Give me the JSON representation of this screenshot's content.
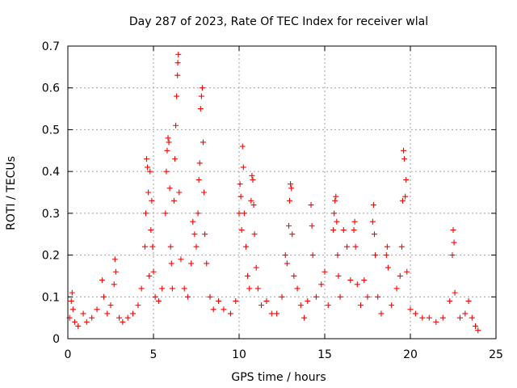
{
  "chart_data": {
    "type": "scatter",
    "title": "Day 287 of 2023, Rate Of TEC Index for receiver wlal",
    "xlabel": "GPS time / hours",
    "ylabel": "ROTI / TECUs",
    "xlim": [
      0,
      25
    ],
    "ylim": [
      0,
      0.7
    ],
    "xticks": [
      0,
      5,
      10,
      15,
      20,
      25
    ],
    "yticks": [
      0,
      0.1,
      0.2,
      0.3,
      0.4,
      0.5,
      0.6,
      0.7
    ],
    "grid": true,
    "marker": "plus",
    "color": "#ff0000",
    "series": [
      {
        "points": [
          [
            0.1,
            0.05
          ],
          [
            0.2,
            0.09
          ],
          [
            0.25,
            0.11
          ],
          [
            0.3,
            0.07
          ],
          [
            0.4,
            0.04
          ],
          [
            0.6,
            0.03
          ],
          [
            0.9,
            0.06
          ],
          [
            1.1,
            0.04
          ],
          [
            1.4,
            0.05
          ],
          [
            1.7,
            0.07
          ],
          [
            2.0,
            0.14
          ],
          [
            2.1,
            0.1
          ],
          [
            2.3,
            0.06
          ],
          [
            2.5,
            0.08
          ],
          [
            2.7,
            0.13
          ],
          [
            2.75,
            0.19
          ],
          [
            2.8,
            0.16
          ],
          [
            3.0,
            0.05
          ],
          [
            3.2,
            0.04
          ],
          [
            3.5,
            0.05
          ],
          [
            3.8,
            0.06
          ],
          [
            4.1,
            0.08
          ],
          [
            4.3,
            0.12
          ],
          [
            4.5,
            0.22
          ],
          [
            4.55,
            0.3
          ],
          [
            4.6,
            0.43
          ],
          [
            4.65,
            0.41
          ],
          [
            4.7,
            0.35
          ],
          [
            4.75,
            0.15
          ],
          [
            4.8,
            0.4
          ],
          [
            4.85,
            0.26
          ],
          [
            4.9,
            0.33
          ],
          [
            4.95,
            0.22
          ],
          [
            5.0,
            0.16
          ],
          [
            5.1,
            0.1
          ],
          [
            5.3,
            0.09
          ],
          [
            5.5,
            0.12
          ],
          [
            5.7,
            0.3
          ],
          [
            5.75,
            0.4
          ],
          [
            5.8,
            0.45
          ],
          [
            5.85,
            0.48
          ],
          [
            5.9,
            0.47
          ],
          [
            5.95,
            0.36
          ],
          [
            6.0,
            0.22
          ],
          [
            6.05,
            0.18
          ],
          [
            6.1,
            0.12
          ],
          [
            6.2,
            0.33
          ],
          [
            6.25,
            0.43
          ],
          [
            6.3,
            0.51
          ],
          [
            6.35,
            0.58
          ],
          [
            6.4,
            0.63
          ],
          [
            6.42,
            0.66
          ],
          [
            6.45,
            0.68
          ],
          [
            6.5,
            0.35
          ],
          [
            6.6,
            0.19
          ],
          [
            6.8,
            0.12
          ],
          [
            7.0,
            0.1
          ],
          [
            7.2,
            0.18
          ],
          [
            7.3,
            0.28
          ],
          [
            7.4,
            0.25
          ],
          [
            7.5,
            0.22
          ],
          [
            7.6,
            0.3
          ],
          [
            7.65,
            0.38
          ],
          [
            7.7,
            0.42
          ],
          [
            7.75,
            0.55
          ],
          [
            7.8,
            0.58
          ],
          [
            7.85,
            0.6
          ],
          [
            7.9,
            0.47
          ],
          [
            7.95,
            0.35
          ],
          [
            8.0,
            0.25
          ],
          [
            8.1,
            0.18
          ],
          [
            8.3,
            0.1
          ],
          [
            8.5,
            0.07
          ],
          [
            8.8,
            0.09
          ],
          [
            9.1,
            0.07
          ],
          [
            9.5,
            0.06
          ],
          [
            9.8,
            0.09
          ],
          [
            10.0,
            0.3
          ],
          [
            10.05,
            0.37
          ],
          [
            10.1,
            0.34
          ],
          [
            10.15,
            0.26
          ],
          [
            10.2,
            0.46
          ],
          [
            10.25,
            0.41
          ],
          [
            10.3,
            0.3
          ],
          [
            10.4,
            0.22
          ],
          [
            10.5,
            0.15
          ],
          [
            10.6,
            0.12
          ],
          [
            10.7,
            0.33
          ],
          [
            10.75,
            0.39
          ],
          [
            10.8,
            0.38
          ],
          [
            10.85,
            0.32
          ],
          [
            10.9,
            0.25
          ],
          [
            11.0,
            0.17
          ],
          [
            11.1,
            0.12
          ],
          [
            11.3,
            0.08
          ],
          [
            11.6,
            0.09
          ],
          [
            11.9,
            0.06
          ],
          [
            12.2,
            0.06
          ],
          [
            12.5,
            0.1
          ],
          [
            12.7,
            0.2
          ],
          [
            12.8,
            0.18
          ],
          [
            12.9,
            0.27
          ],
          [
            12.95,
            0.33
          ],
          [
            13.0,
            0.37
          ],
          [
            13.05,
            0.36
          ],
          [
            13.1,
            0.25
          ],
          [
            13.2,
            0.15
          ],
          [
            13.4,
            0.12
          ],
          [
            13.6,
            0.08
          ],
          [
            13.8,
            0.05
          ],
          [
            14.0,
            0.09
          ],
          [
            14.2,
            0.32
          ],
          [
            14.25,
            0.27
          ],
          [
            14.3,
            0.2
          ],
          [
            14.5,
            0.1
          ],
          [
            14.8,
            0.13
          ],
          [
            15.0,
            0.16
          ],
          [
            15.2,
            0.08
          ],
          [
            15.5,
            0.26
          ],
          [
            15.55,
            0.3
          ],
          [
            15.6,
            0.33
          ],
          [
            15.65,
            0.34
          ],
          [
            15.7,
            0.28
          ],
          [
            15.75,
            0.2
          ],
          [
            15.8,
            0.15
          ],
          [
            15.9,
            0.1
          ],
          [
            16.1,
            0.26
          ],
          [
            16.3,
            0.22
          ],
          [
            16.5,
            0.14
          ],
          [
            16.7,
            0.26
          ],
          [
            16.75,
            0.28
          ],
          [
            16.8,
            0.22
          ],
          [
            16.9,
            0.13
          ],
          [
            17.1,
            0.08
          ],
          [
            17.3,
            0.14
          ],
          [
            17.5,
            0.1
          ],
          [
            17.8,
            0.28
          ],
          [
            17.85,
            0.32
          ],
          [
            17.9,
            0.25
          ],
          [
            17.95,
            0.2
          ],
          [
            18.1,
            0.1
          ],
          [
            18.3,
            0.06
          ],
          [
            18.6,
            0.2
          ],
          [
            18.65,
            0.22
          ],
          [
            18.7,
            0.17
          ],
          [
            18.9,
            0.08
          ],
          [
            19.2,
            0.12
          ],
          [
            19.4,
            0.15
          ],
          [
            19.5,
            0.22
          ],
          [
            19.55,
            0.33
          ],
          [
            19.6,
            0.45
          ],
          [
            19.65,
            0.43
          ],
          [
            19.7,
            0.34
          ],
          [
            19.75,
            0.38
          ],
          [
            19.8,
            0.16
          ],
          [
            20.0,
            0.07
          ],
          [
            20.3,
            0.06
          ],
          [
            20.7,
            0.05
          ],
          [
            21.1,
            0.05
          ],
          [
            21.5,
            0.04
          ],
          [
            21.9,
            0.05
          ],
          [
            22.3,
            0.09
          ],
          [
            22.45,
            0.2
          ],
          [
            22.5,
            0.26
          ],
          [
            22.55,
            0.23
          ],
          [
            22.6,
            0.11
          ],
          [
            22.9,
            0.05
          ],
          [
            23.2,
            0.06
          ],
          [
            23.4,
            0.09
          ],
          [
            23.6,
            0.05
          ],
          [
            23.8,
            0.03
          ],
          [
            23.95,
            0.02
          ]
        ]
      }
    ]
  }
}
